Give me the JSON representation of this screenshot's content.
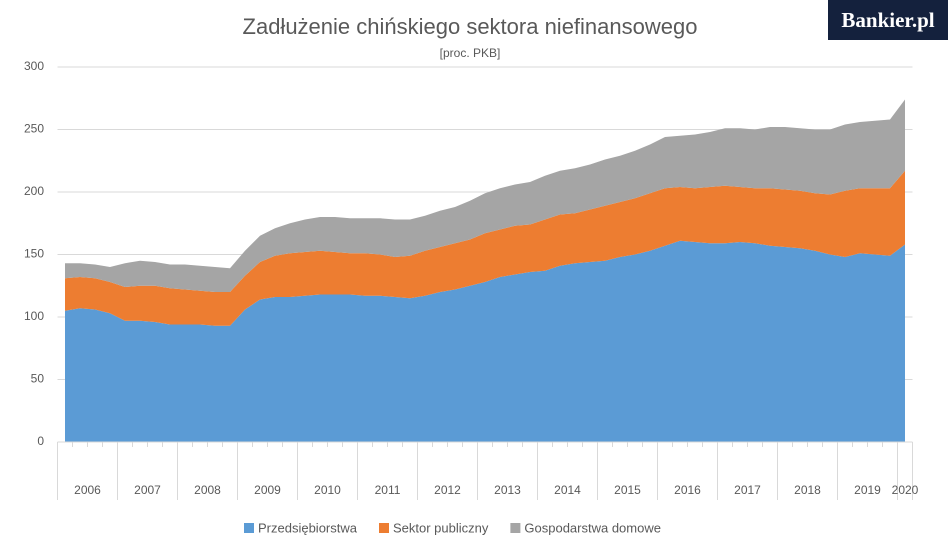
{
  "brand": "Bankier.pl",
  "chart_data": {
    "type": "stacked_area",
    "title": "Zadłużenie chińskiego sektora niefinansowego",
    "subtitle": "[proc. PKB]",
    "years": [
      "2006",
      "2007",
      "2008",
      "2009",
      "2010",
      "2011",
      "2012",
      "2013",
      "2014",
      "2015",
      "2016",
      "2017",
      "2018",
      "2019",
      "2020"
    ],
    "categories": [
      null,
      null,
      null,
      null,
      null,
      null,
      null,
      null,
      null,
      null,
      null,
      null,
      null,
      null,
      null,
      null,
      null,
      null,
      null,
      null,
      null,
      null,
      null,
      null,
      null,
      null,
      null,
      null,
      null,
      null,
      null,
      null,
      null,
      null,
      null,
      null,
      null,
      null,
      null,
      null,
      null,
      null,
      null,
      null,
      null,
      null,
      null,
      null,
      null,
      null,
      null,
      null,
      null,
      null,
      null,
      null,
      null
    ],
    "ylim": [
      0,
      300
    ],
    "yticks": [
      0,
      50,
      100,
      150,
      200,
      250,
      300
    ],
    "grid": true,
    "legend": "bottom",
    "series": [
      {
        "name": "Przedsiębiorstwa",
        "color": "#5b9bd5",
        "values": [
          105,
          107,
          106,
          103,
          97,
          97,
          96,
          94,
          94,
          94,
          93,
          93,
          106,
          114,
          116,
          116,
          117,
          118,
          118,
          118,
          117,
          117,
          116,
          115,
          117,
          120,
          122,
          125,
          128,
          132,
          134,
          136,
          137,
          141,
          143,
          144,
          145,
          148,
          150,
          153,
          157,
          161,
          160,
          159,
          159,
          160,
          159,
          157,
          156,
          155,
          153,
          150,
          148,
          151,
          150,
          149,
          158
        ]
      },
      {
        "name": "Sektor publiczny",
        "color": "#ed7d31",
        "values": [
          26,
          25,
          25,
          25,
          27,
          28,
          29,
          29,
          28,
          27,
          27,
          27,
          27,
          30,
          33,
          35,
          35,
          35,
          34,
          33,
          34,
          33,
          32,
          34,
          36,
          36,
          37,
          37,
          39,
          38,
          39,
          38,
          41,
          41,
          40,
          42,
          44,
          44,
          45,
          46,
          46,
          43,
          43,
          45,
          46,
          44,
          44,
          46,
          46,
          46,
          46,
          48,
          53,
          52,
          53,
          54,
          59
        ]
      },
      {
        "name": "Gospodarstwa domowe",
        "color": "#a5a5a5",
        "values": [
          12,
          11,
          11,
          12,
          19,
          20,
          19,
          19,
          20,
          20,
          20,
          19,
          20,
          21,
          22,
          24,
          26,
          27,
          28,
          28,
          28,
          29,
          30,
          29,
          28,
          29,
          29,
          31,
          32,
          33,
          33,
          34,
          35,
          35,
          36,
          36,
          37,
          37,
          38,
          39,
          41,
          41,
          43,
          44,
          46,
          47,
          47,
          49,
          50,
          50,
          51,
          52,
          53,
          53,
          54,
          55,
          57
        ]
      }
    ]
  }
}
